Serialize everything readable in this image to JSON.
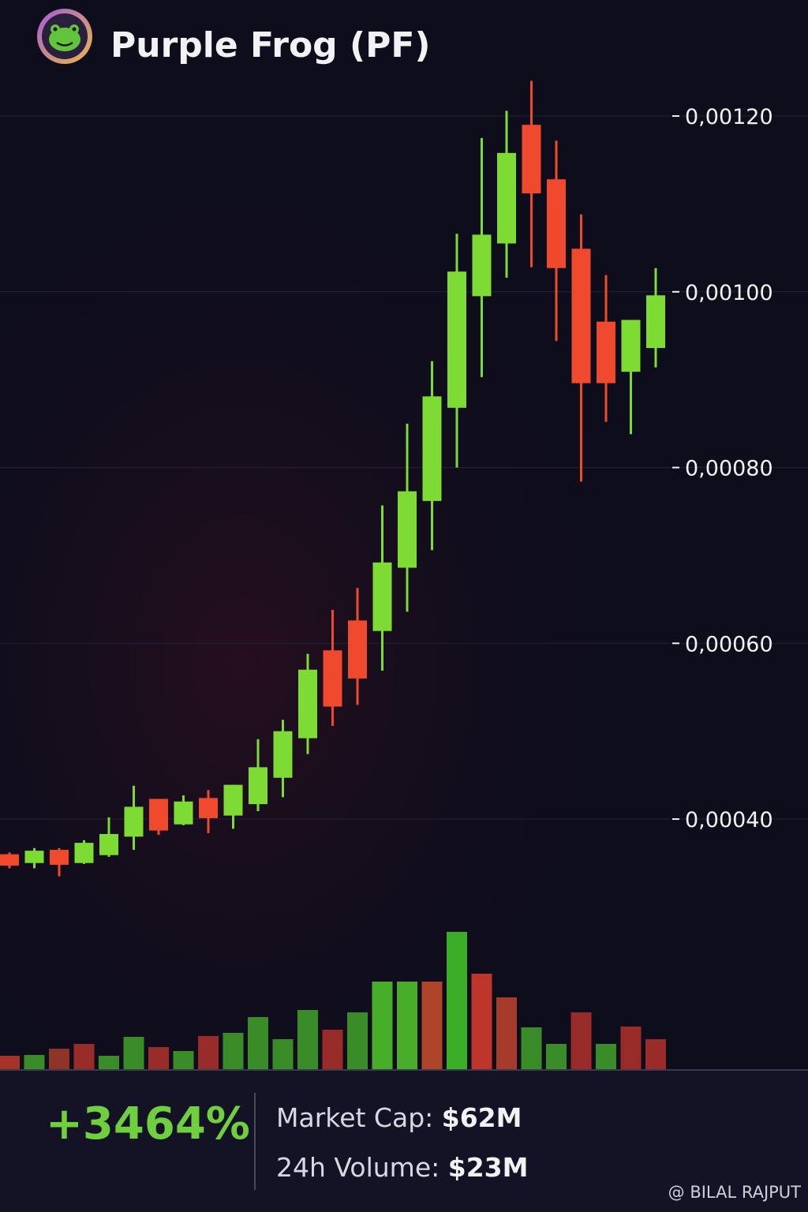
{
  "chart_data": {
    "type": "candlestick",
    "title": "Purple Frog (PF)",
    "open": [
      0.00036,
      0.00035,
      0.000365,
      0.00035,
      0.000359,
      0.00038,
      0.000423,
      0.000394,
      0.000424,
      0.000404,
      0.000417,
      0.000447,
      0.000492,
      0.000592,
      0.000626,
      0.000614,
      0.000686,
      0.000762,
      0.000868,
      0.000995,
      0.001055,
      0.00119,
      0.001128,
      0.001049,
      0.000966,
      0.000909,
      0.000936
    ],
    "high": [
      0.000362,
      0.000367,
      0.000367,
      0.000376,
      0.000402,
      0.000438,
      0.000423,
      0.000427,
      0.000433,
      0.000439,
      0.000491,
      0.000513,
      0.000588,
      0.000638,
      0.000663,
      0.000757,
      0.00085,
      0.000921,
      0.001066,
      0.001175,
      0.001206,
      0.00124,
      0.001172,
      0.001088,
      0.001019,
      0.000968,
      0.001027
    ],
    "low": [
      0.000344,
      0.000344,
      0.000335,
      0.000349,
      0.000357,
      0.000365,
      0.000382,
      0.000393,
      0.000384,
      0.000389,
      0.000409,
      0.000425,
      0.000474,
      0.000506,
      0.00053,
      0.000569,
      0.000636,
      0.000706,
      0.0008,
      0.000903,
      0.001016,
      0.001028,
      0.000944,
      0.000784,
      0.000852,
      0.000838,
      0.000914
    ],
    "close": [
      0.000347,
      0.000364,
      0.000348,
      0.000373,
      0.000383,
      0.000414,
      0.000387,
      0.00042,
      0.000401,
      0.000439,
      0.000459,
      0.0005,
      0.00057,
      0.000528,
      0.00056,
      0.000692,
      0.000773,
      0.000881,
      0.001023,
      0.001065,
      0.001158,
      0.001112,
      0.001027,
      0.000896,
      0.000896,
      0.000968,
      0.000996
    ],
    "up_color": "#7ddb34",
    "down_color": "#f04a2e",
    "ylim": [
      0.00028,
      0.00124
    ],
    "yticks": [
      {
        "value": 0.0004,
        "label": "0,00040"
      },
      {
        "value": 0.0006,
        "label": "0,00060"
      },
      {
        "value": 0.0008,
        "label": "0,00080"
      },
      {
        "value": 0.001,
        "label": "0,00100"
      },
      {
        "value": 0.0012,
        "label": "0,00120"
      }
    ],
    "grid": true,
    "volume": {
      "values": [
        17,
        18,
        26,
        32,
        17,
        41,
        28,
        23,
        42,
        46,
        66,
        38,
        75,
        50,
        72,
        111,
        111,
        111,
        174,
        121,
        91,
        53,
        32,
        72,
        32,
        54,
        38
      ],
      "colors": [
        "#b8362a",
        "#3f9a2a",
        "#9c3a2a",
        "#a8302a",
        "#3f9a2a",
        "#3f9a2a",
        "#a8302a",
        "#3f9a2a",
        "#a8302a",
        "#3f9a2a",
        "#3f9a2a",
        "#3f9a2a",
        "#3f9a2a",
        "#a8302a",
        "#3f9a2a",
        "#4fc02c",
        "#4fc02c",
        "#c04a2a",
        "#3fc028",
        "#d03a2e",
        "#b8402e",
        "#3f9a2a",
        "#3f9a2a",
        "#a8302a",
        "#3f9a2a",
        "#a8302a",
        "#a8302a"
      ],
      "ylim": [
        0,
        180
      ]
    }
  },
  "summary": {
    "change": "+3464%",
    "market_cap_label": "Market Cap: ",
    "market_cap": "$62M",
    "volume_label": "24h Volume: ",
    "volume_24h": "$23M"
  },
  "watermark": "@ BILAL RAJPUT"
}
